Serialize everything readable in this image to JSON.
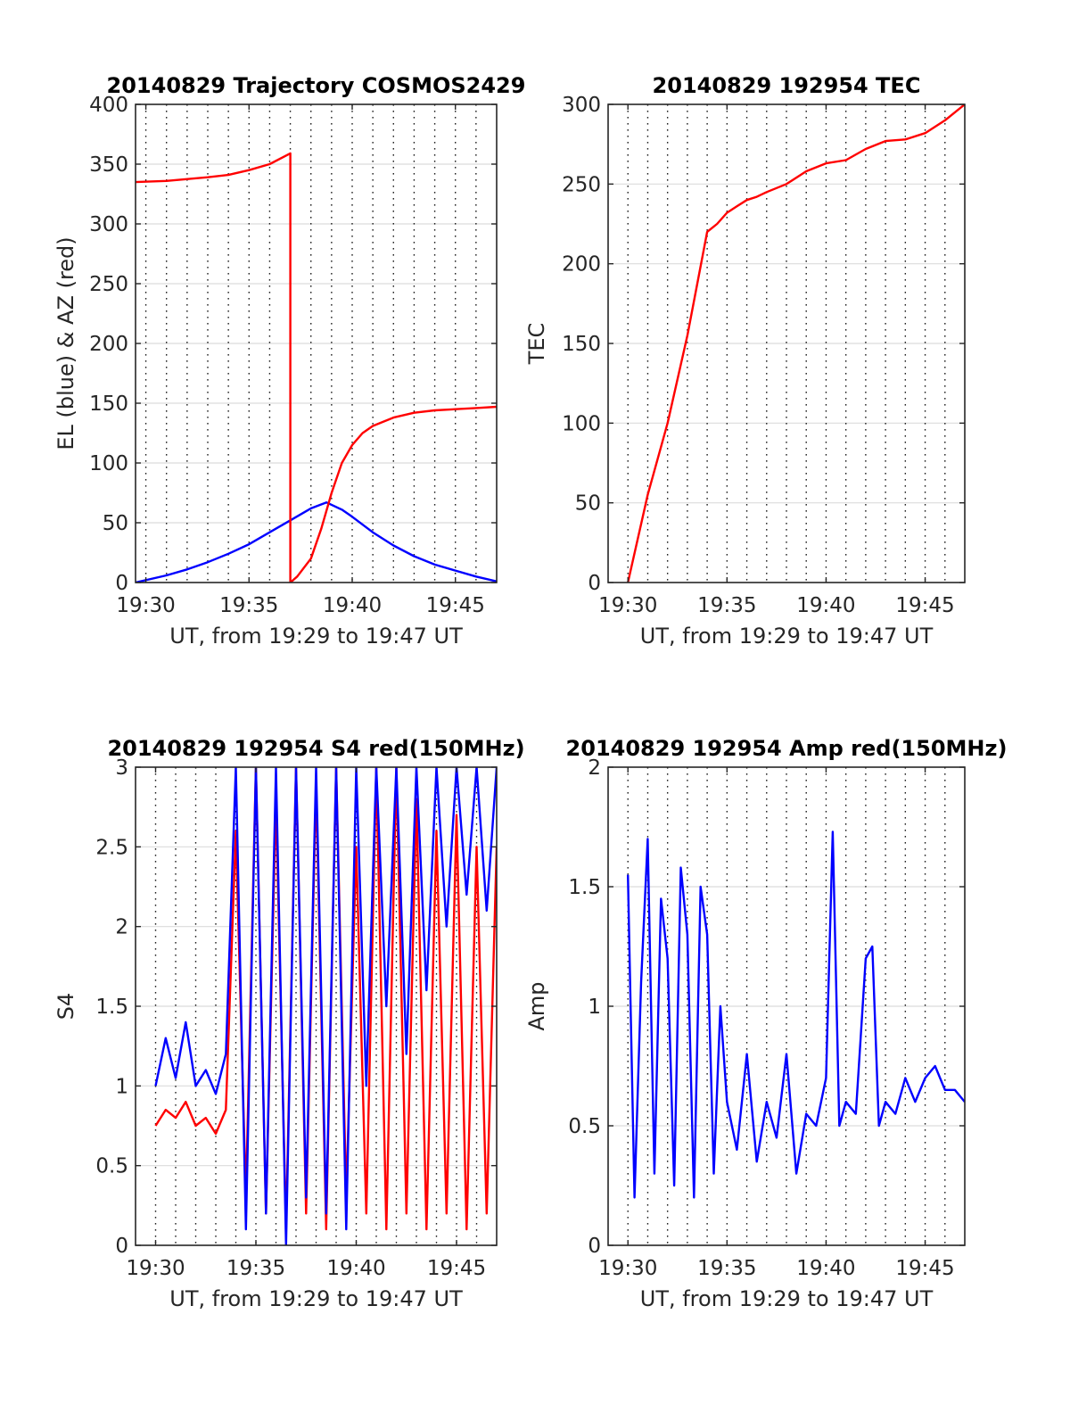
{
  "chart_data": [
    {
      "type": "line",
      "title": "20140829 Trajectory COSMOS2429",
      "xlabel": "UT, from 19:29 to 19:47 UT",
      "ylabel": "EL (blue) & AZ (red)",
      "xlim": [
        "19:29:30",
        "19:47:00"
      ],
      "ylim": [
        0,
        400
      ],
      "xticks": [
        "19:30",
        "19:35",
        "19:40",
        "19:45"
      ],
      "yticks": [
        0,
        50,
        100,
        150,
        200,
        250,
        300,
        350,
        400
      ],
      "grid": "major y solid, minor x dotted",
      "series": [
        {
          "color": "#0000ff",
          "x": [
            "19:29:30",
            "19:31:00",
            "19:32:00",
            "19:33:00",
            "19:34:00",
            "19:35:00",
            "19:36:00",
            "19:37:00",
            "19:38:00",
            "19:38:45",
            "19:39:30",
            "19:40:00",
            "19:41:00",
            "19:42:00",
            "19:43:00",
            "19:44:00",
            "19:45:00",
            "19:46:00",
            "19:47:00"
          ],
          "y": [
            0,
            6,
            11,
            17,
            24,
            32,
            42,
            52,
            62,
            67,
            61,
            55,
            42,
            31,
            22,
            15,
            10,
            5,
            1
          ]
        },
        {
          "color": "#ff0000",
          "x": [
            "19:29:30",
            "19:31:00",
            "19:33:00",
            "19:34:00",
            "19:35:00",
            "19:36:00",
            "19:37:00",
            "19:37:00",
            "19:37:20",
            "19:38:00",
            "19:38:30",
            "19:39:00",
            "19:39:30",
            "19:40:00",
            "19:40:30",
            "19:41:00",
            "19:42:00",
            "19:43:00",
            "19:44:00",
            "19:45:00",
            "19:46:00",
            "19:47:00"
          ],
          "y": [
            335,
            336,
            339,
            341,
            345,
            350,
            359,
            0,
            5,
            20,
            45,
            75,
            100,
            115,
            125,
            131,
            138,
            142,
            144,
            145,
            146,
            147
          ]
        }
      ]
    },
    {
      "type": "line",
      "title": "20140829 192954 TEC",
      "xlabel": "UT, from 19:29 to 19:47 UT",
      "ylabel": "TEC",
      "xlim": [
        "19:29:00",
        "19:47:00"
      ],
      "ylim": [
        0,
        300
      ],
      "xticks": [
        "19:30",
        "19:35",
        "19:40",
        "19:45"
      ],
      "yticks": [
        0,
        50,
        100,
        150,
        200,
        250,
        300
      ],
      "grid": "major y solid, minor x dotted",
      "series": [
        {
          "color": "#ff0000",
          "x": [
            "19:30:00",
            "19:31:00",
            "19:32:00",
            "19:33:00",
            "19:34:00",
            "19:34:30",
            "19:35:00",
            "19:35:30",
            "19:36:00",
            "19:36:30",
            "19:37:00",
            "19:38:00",
            "19:39:00",
            "19:40:00",
            "19:41:00",
            "19:42:00",
            "19:43:00",
            "19:44:00",
            "19:45:00",
            "19:46:00",
            "19:47:00"
          ],
          "y": [
            0,
            55,
            100,
            155,
            220,
            225,
            232,
            236,
            240,
            242,
            245,
            250,
            258,
            263,
            265,
            272,
            277,
            278,
            282,
            290,
            300
          ]
        }
      ]
    },
    {
      "type": "line",
      "title": "20140829 192954 S4 red(150MHz)",
      "xlabel": "UT, from 19:29 to 19:47 UT",
      "ylabel": "S4",
      "xlim": [
        "19:29:00",
        "19:47:00"
      ],
      "ylim": [
        0,
        3
      ],
      "xticks": [
        "19:30",
        "19:35",
        "19:40",
        "19:45"
      ],
      "yticks": [
        0,
        0.5,
        1,
        1.5,
        2,
        2.5,
        3
      ],
      "grid": "major y solid, minor x dotted",
      "series": [
        {
          "color": "#ff0000",
          "x": [
            "19:30:00",
            "19:30:30",
            "19:31:00",
            "19:31:30",
            "19:32:00",
            "19:32:30",
            "19:33:00",
            "19:33:30",
            "19:34:00",
            "19:34:30",
            "19:35:00",
            "19:35:30",
            "19:36:00",
            "19:36:30",
            "19:37:00",
            "19:37:30",
            "19:38:00",
            "19:38:30",
            "19:39:00",
            "19:39:30",
            "19:40:00",
            "19:40:30",
            "19:41:00",
            "19:41:30",
            "19:42:00",
            "19:42:30",
            "19:43:00",
            "19:43:30",
            "19:44:00",
            "19:44:30",
            "19:45:00",
            "19:45:30",
            "19:46:00",
            "19:46:30",
            "19:47:00"
          ],
          "y": [
            0.75,
            0.85,
            0.8,
            0.9,
            0.75,
            0.8,
            0.7,
            0.85,
            2.6,
            0.3,
            3.0,
            0.2,
            2.8,
            0.1,
            3.0,
            0.2,
            2.9,
            0.1,
            3.0,
            0.3,
            2.5,
            0.2,
            3.0,
            0.1,
            3.0,
            0.2,
            2.8,
            0.1,
            2.6,
            0.2,
            2.7,
            0.1,
            2.5,
            0.2,
            2.5
          ]
        },
        {
          "color": "#0000ff",
          "x": [
            "19:30:00",
            "19:30:30",
            "19:31:00",
            "19:31:30",
            "19:32:00",
            "19:32:30",
            "19:33:00",
            "19:33:30",
            "19:34:00",
            "19:34:30",
            "19:35:00",
            "19:35:30",
            "19:36:00",
            "19:36:30",
            "19:37:00",
            "19:37:30",
            "19:38:00",
            "19:38:30",
            "19:39:00",
            "19:39:30",
            "19:40:00",
            "19:40:30",
            "19:41:00",
            "19:41:30",
            "19:42:00",
            "19:42:30",
            "19:43:00",
            "19:43:30",
            "19:44:00",
            "19:44:30",
            "19:45:00",
            "19:45:30",
            "19:46:00",
            "19:46:30",
            "19:47:00"
          ],
          "y": [
            1.0,
            1.3,
            1.05,
            1.4,
            1.0,
            1.1,
            0.95,
            1.2,
            3.0,
            0.1,
            3.0,
            0.2,
            3.0,
            0.0,
            3.0,
            0.3,
            3.0,
            0.2,
            3.0,
            0.1,
            3.0,
            1.0,
            3.0,
            1.5,
            3.0,
            1.2,
            3.0,
            1.6,
            3.0,
            2.0,
            3.0,
            2.2,
            3.0,
            2.1,
            3.0
          ]
        }
      ]
    },
    {
      "type": "line",
      "title": "20140829 192954 Amp red(150MHz)",
      "xlabel": "UT, from 19:29 to 19:47 UT",
      "ylabel": "Amp",
      "xlim": [
        "19:29:00",
        "19:47:00"
      ],
      "ylim": [
        0,
        2
      ],
      "xticks": [
        "19:30",
        "19:35",
        "19:40",
        "19:45"
      ],
      "yticks": [
        0,
        0.5,
        1,
        1.5,
        2
      ],
      "grid": "major y solid, minor x dotted",
      "series": [
        {
          "color": "#0000ff",
          "x": [
            "19:30:00",
            "19:30:20",
            "19:30:40",
            "19:31:00",
            "19:31:20",
            "19:31:40",
            "19:32:00",
            "19:32:20",
            "19:32:40",
            "19:33:00",
            "19:33:20",
            "19:33:40",
            "19:34:00",
            "19:34:20",
            "19:34:40",
            "19:35:00",
            "19:35:30",
            "19:36:00",
            "19:36:30",
            "19:37:00",
            "19:37:30",
            "19:38:00",
            "19:38:30",
            "19:39:00",
            "19:39:30",
            "19:40:00",
            "19:40:20",
            "19:40:40",
            "19:41:00",
            "19:41:30",
            "19:42:00",
            "19:42:20",
            "19:42:40",
            "19:43:00",
            "19:43:30",
            "19:44:00",
            "19:44:30",
            "19:45:00",
            "19:45:30",
            "19:46:00",
            "19:46:30",
            "19:47:00"
          ],
          "y": [
            1.55,
            0.2,
            1.1,
            1.7,
            0.3,
            1.45,
            1.2,
            0.25,
            1.58,
            1.3,
            0.2,
            1.5,
            1.3,
            0.3,
            1.0,
            0.6,
            0.4,
            0.8,
            0.35,
            0.6,
            0.45,
            0.8,
            0.3,
            0.55,
            0.5,
            0.7,
            1.73,
            0.5,
            0.6,
            0.55,
            1.2,
            1.25,
            0.5,
            0.6,
            0.55,
            0.7,
            0.6,
            0.7,
            0.75,
            0.65,
            0.65,
            0.6
          ]
        }
      ]
    }
  ]
}
